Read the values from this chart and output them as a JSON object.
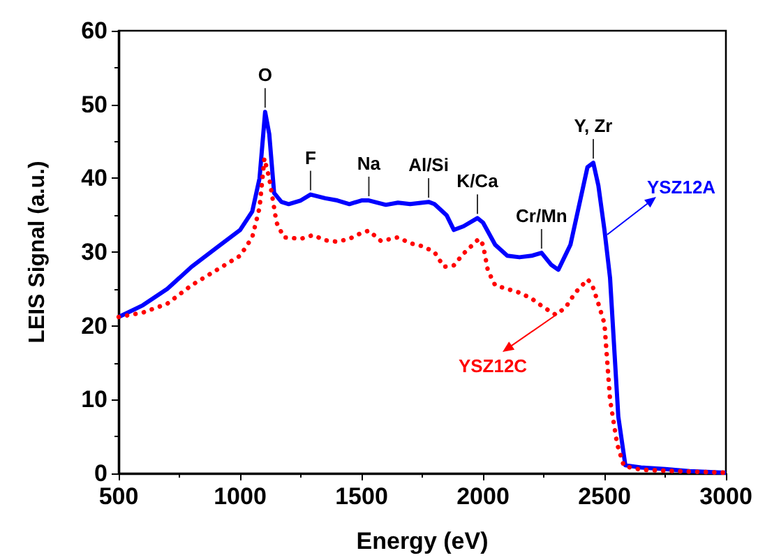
{
  "chart_data": {
    "type": "line",
    "xlabel": "Energy (eV)",
    "ylabel": "LEIS Signal (a.u.)",
    "xlim": [
      500,
      3000
    ],
    "xticks": [
      500,
      1000,
      1500,
      2000,
      2500,
      3000
    ],
    "ylim": [
      0,
      60
    ],
    "yticks": [
      0,
      10,
      20,
      30,
      40,
      50,
      60
    ],
    "grid": false,
    "series": [
      {
        "name": "YSZ12A",
        "color": "#0000ff",
        "line_style": "solid",
        "x": [
          500,
          600,
          700,
          800,
          900,
          1000,
          1050,
          1080,
          1103,
          1120,
          1140,
          1170,
          1200,
          1250,
          1290,
          1350,
          1400,
          1450,
          1500,
          1530,
          1600,
          1650,
          1700,
          1776,
          1800,
          1850,
          1880,
          1920,
          1977,
          2000,
          2050,
          2100,
          2150,
          2200,
          2241,
          2280,
          2310,
          2360,
          2400,
          2430,
          2454,
          2475,
          2500,
          2523,
          2557,
          2586,
          2650,
          2750,
          2850,
          3000
        ],
        "values": [
          21.2,
          22.8,
          25,
          28,
          30.5,
          33,
          35.5,
          40,
          49,
          46,
          38,
          36.8,
          36.5,
          37,
          37.8,
          37.3,
          37,
          36.5,
          37,
          37,
          36.4,
          36.7,
          36.5,
          36.8,
          36.5,
          35,
          33,
          33.5,
          34.6,
          34,
          31,
          29.5,
          29.3,
          29.5,
          29.9,
          28.3,
          27.6,
          31,
          37,
          41.5,
          42.1,
          39,
          33,
          26.5,
          7.7,
          1.1,
          0.8,
          0.6,
          0.3,
          0.1
        ]
      },
      {
        "name": "YSZ12C",
        "color": "#ff0000",
        "line_style": "dotted",
        "x": [
          500,
          600,
          700,
          800,
          900,
          1000,
          1050,
          1080,
          1100,
          1120,
          1150,
          1180,
          1250,
          1300,
          1350,
          1400,
          1450,
          1500,
          1530,
          1580,
          1650,
          1700,
          1750,
          1800,
          1839,
          1880,
          1920,
          1983,
          2000,
          2020,
          2050,
          2100,
          2150,
          2200,
          2250,
          2300,
          2340,
          2380,
          2431,
          2450,
          2475,
          2500,
          2523,
          2552,
          2580,
          2650,
          2800,
          3000
        ],
        "values": [
          21.2,
          21.8,
          23,
          25.5,
          27.5,
          29.5,
          32,
          36,
          42.7,
          40,
          34,
          32,
          31.8,
          32.3,
          31.6,
          31.4,
          31.8,
          32.6,
          32.9,
          31.5,
          32,
          31.2,
          30.8,
          30,
          28,
          28.2,
          29.8,
          31.8,
          31,
          27.5,
          25.5,
          25,
          24.5,
          23.7,
          22.5,
          21.5,
          22.5,
          24.5,
          26.3,
          25.5,
          23,
          20.3,
          10,
          4,
          1,
          0.5,
          0.3,
          0.1
        ]
      }
    ],
    "annotations": [
      {
        "text": "O",
        "x": 1103,
        "y": 49
      },
      {
        "text": "F",
        "x": 1290,
        "y": 37.8
      },
      {
        "text": "Na",
        "x": 1530,
        "y": 37
      },
      {
        "text": "Al/Si",
        "x": 1776,
        "y": 36.8
      },
      {
        "text": "K/Ca",
        "x": 1977,
        "y": 34.6
      },
      {
        "text": "Cr/Mn",
        "x": 2241,
        "y": 29.9
      },
      {
        "text": "Y, Zr",
        "x": 2454,
        "y": 42.1
      }
    ]
  }
}
